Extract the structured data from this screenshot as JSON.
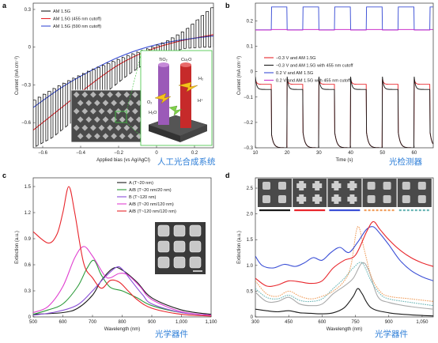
{
  "chart_data": [
    {
      "panel": "a",
      "type": "line",
      "xlabel": "Applied bias (vs Ag/AgCl)",
      "ylabel": "Current (mA cm⁻²)",
      "xlim": [
        -0.65,
        0.3
      ],
      "ylim": [
        -0.8,
        0.35
      ],
      "xticks": [
        -0.6,
        -0.4,
        -0.2,
        0,
        0.2
      ],
      "xtick_labels": [
        "−0.6",
        "−0.4",
        "−0.2",
        "0",
        "0.2"
      ],
      "yticks": [
        0.3,
        0,
        -0.3,
        -0.6
      ],
      "ytick_labels": [
        "0.3",
        "0",
        "−0.3",
        "−0.6"
      ],
      "legend": "top-left",
      "caption": "人工光合成系统",
      "series": [
        {
          "name": "AM 1.5G",
          "color": "#1a1a1a",
          "style": "chopped",
          "x": [
            -0.65,
            -0.55,
            -0.45,
            -0.35,
            -0.25,
            -0.15,
            -0.05,
            0.05,
            0.15,
            0.25,
            0.3
          ],
          "dark": [
            -0.8,
            -0.72,
            -0.6,
            -0.47,
            -0.34,
            -0.22,
            -0.12,
            -0.05,
            -0.01,
            0.0,
            0.0
          ],
          "light": [
            -0.42,
            -0.33,
            -0.25,
            -0.18,
            -0.12,
            -0.06,
            -0.01,
            0.05,
            0.14,
            0.27,
            0.33
          ]
        },
        {
          "name": "AM 1.5G (455 nm cutoff)",
          "color": "#e8262c",
          "x": [
            -0.65,
            -0.5,
            -0.35,
            -0.2,
            -0.05,
            0.1,
            0.3
          ],
          "y": [
            -0.66,
            -0.48,
            -0.3,
            -0.14,
            -0.03,
            0.04,
            0.1
          ]
        },
        {
          "name": "AM 1.5G (590 nm cutoff)",
          "color": "#3b4fd6",
          "x": [
            -0.65,
            -0.5,
            -0.35,
            -0.2,
            -0.05,
            0.1,
            0.3
          ],
          "y": [
            -0.48,
            -0.32,
            -0.19,
            -0.08,
            0.0,
            0.05,
            0.09
          ]
        }
      ],
      "inset_labels": [
        "TiO₂",
        "Cu₂O",
        "H₂",
        "H⁺",
        "O₂",
        "H₂O"
      ]
    },
    {
      "panel": "b",
      "type": "line",
      "xlabel": "Time (s)",
      "ylabel": "Current (mA cm⁻²)",
      "xlim": [
        10,
        66
      ],
      "ylim": [
        -0.3,
        0.27
      ],
      "xticks": [
        10,
        20,
        30,
        40,
        50,
        60
      ],
      "xtick_labels": [
        "10",
        "20",
        "30",
        "40",
        "50",
        "60"
      ],
      "yticks": [
        0.2,
        0.1,
        0,
        -0.1,
        -0.2,
        -0.3
      ],
      "ytick_labels": [
        "0.2",
        "0.1",
        "0",
        "−0.1",
        "−0.2",
        "−0.3"
      ],
      "legend": "top-right",
      "caption": "光检测器",
      "on_intervals": [
        [
          10,
          15
        ],
        [
          20,
          25
        ],
        [
          30,
          35
        ],
        [
          40,
          45
        ],
        [
          50,
          55
        ],
        [
          60,
          65
        ]
      ],
      "series": [
        {
          "name": "−0.3 V and AM 1.5G",
          "color": "#e8262c",
          "dark": -0.3,
          "light": -0.05
        },
        {
          "name": "−0.3 V and AM 1.5G with 455 nm cutoff",
          "color": "#1a1a1a",
          "dark": -0.3,
          "light": -0.07
        },
        {
          "name": "0.2 V and AM 1.5G",
          "color": "#3b4fd6",
          "dark": 0.255,
          "light": 0.165
        },
        {
          "name": "0.2 V and AM 1.5G with 455 nm cutoff",
          "color": "#cc33cc",
          "dark": 0.166,
          "light": 0.164
        }
      ]
    },
    {
      "panel": "c",
      "type": "line",
      "xlabel": "Wavelength (nm)",
      "ylabel": "Extinction (a.u.)",
      "xlim": [
        500,
        1100
      ],
      "ylim": [
        0,
        1.6
      ],
      "xticks": [
        500,
        600,
        700,
        800,
        900,
        1000,
        1100
      ],
      "xtick_labels": [
        "500",
        "600",
        "700",
        "800",
        "900",
        "1,000",
        "1,100"
      ],
      "yticks": [
        0,
        0.3,
        0.6,
        0.9,
        1.2,
        1.5
      ],
      "ytick_labels": [
        "0",
        "0.3",
        "0.6",
        "0.9",
        "1.2",
        "1.5"
      ],
      "legend": "top-right",
      "caption": "光学器件",
      "series": [
        {
          "name": "A (T~20 nm)",
          "color": "#1a1a1a",
          "x": [
            500,
            600,
            650,
            700,
            730,
            770,
            800,
            850,
            900,
            1000,
            1100
          ],
          "y": [
            0.03,
            0.05,
            0.1,
            0.25,
            0.42,
            0.56,
            0.54,
            0.4,
            0.22,
            0.08,
            0.03
          ]
        },
        {
          "name": "A/B (T~20 nm/20 nm)",
          "color": "#2c9a3a",
          "x": [
            500,
            550,
            600,
            650,
            680,
            705,
            730,
            760,
            800,
            850,
            900,
            1000,
            1100
          ],
          "y": [
            0.03,
            0.08,
            0.15,
            0.35,
            0.55,
            0.65,
            0.48,
            0.34,
            0.3,
            0.22,
            0.13,
            0.05,
            0.02
          ]
        },
        {
          "name": "B (T~120 nm)",
          "color": "#8a4fd8",
          "x": [
            500,
            580,
            650,
            700,
            740,
            780,
            800,
            830,
            870,
            900,
            1000,
            1100
          ],
          "y": [
            0.02,
            0.06,
            0.14,
            0.3,
            0.45,
            0.57,
            0.55,
            0.42,
            0.25,
            0.15,
            0.05,
            0.02
          ]
        },
        {
          "name": "A/B (T~20 nm/120 nm)",
          "color": "#e040d0",
          "x": [
            500,
            550,
            600,
            640,
            670,
            700,
            740,
            760,
            790,
            820,
            860,
            900,
            1000,
            1100
          ],
          "y": [
            0.05,
            0.12,
            0.35,
            0.68,
            0.81,
            0.7,
            0.48,
            0.45,
            0.5,
            0.48,
            0.35,
            0.2,
            0.06,
            0.02
          ]
        },
        {
          "name": "A/B (T~120 nm/120 nm)",
          "color": "#e8262c",
          "x": [
            500,
            550,
            580,
            600,
            620,
            640,
            670,
            700,
            730,
            760,
            790,
            820,
            850,
            900,
            1000,
            1100
          ],
          "y": [
            0.98,
            0.85,
            0.95,
            1.2,
            1.5,
            1.2,
            0.62,
            0.45,
            0.33,
            0.42,
            0.4,
            0.3,
            0.2,
            0.1,
            0.03,
            0.01
          ]
        }
      ]
    },
    {
      "panel": "d",
      "type": "line",
      "xlabel": "Wavelength (nm)",
      "ylabel": "Extinction (a.u.)",
      "xlim": [
        300,
        1100
      ],
      "ylim": [
        0,
        2.7
      ],
      "xticks": [
        300,
        450,
        600,
        750,
        900,
        1050
      ],
      "xtick_labels": [
        "300",
        "450",
        "600",
        "750",
        "900",
        "1,050"
      ],
      "yticks": [
        0,
        0.5,
        1.0,
        1.5,
        2.0,
        2.5
      ],
      "ytick_labels": [
        "0",
        "0.5",
        "1.0",
        "1.5",
        "2.0",
        "2.5"
      ],
      "caption": "光学器件",
      "series": [
        {
          "name": "black",
          "color": "#1a1a1a",
          "x": [
            300,
            350,
            400,
            450,
            500,
            550,
            600,
            650,
            700,
            740,
            760,
            780,
            820,
            900,
            1000,
            1100
          ],
          "y": [
            0.15,
            0.12,
            0.1,
            0.12,
            0.08,
            0.07,
            0.06,
            0.08,
            0.18,
            0.4,
            0.55,
            0.45,
            0.18,
            0.08,
            0.04,
            0.02
          ]
        },
        {
          "name": "red",
          "color": "#e8262c",
          "x": [
            300,
            350,
            400,
            450,
            500,
            550,
            600,
            650,
            700,
            750,
            800,
            830,
            860,
            900,
            950,
            1000,
            1050,
            1100
          ],
          "y": [
            0.75,
            0.6,
            0.62,
            0.7,
            0.68,
            0.65,
            0.7,
            0.95,
            1.1,
            1.2,
            1.65,
            1.85,
            1.7,
            1.5,
            1.3,
            1.15,
            1.05,
            0.98
          ]
        },
        {
          "name": "blue",
          "color": "#3b4fd6",
          "x": [
            300,
            330,
            380,
            430,
            480,
            520,
            560,
            600,
            640,
            680,
            720,
            760,
            800,
            830,
            860,
            900,
            950,
            1000,
            1050,
            1100
          ],
          "y": [
            1.18,
            1.0,
            0.95,
            1.02,
            0.98,
            1.05,
            1.15,
            1.1,
            1.25,
            1.35,
            1.25,
            1.45,
            1.7,
            1.75,
            1.62,
            1.4,
            1.1,
            0.9,
            0.78,
            0.7
          ]
        },
        {
          "name": "orange-dashed",
          "color": "#f0a060",
          "dashed": true,
          "x": [
            300,
            350,
            400,
            450,
            500,
            550,
            600,
            650,
            700,
            730,
            760,
            790,
            820,
            860,
            900,
            1000,
            1100
          ],
          "y": [
            0.7,
            0.45,
            0.4,
            0.5,
            0.4,
            0.35,
            0.4,
            0.5,
            0.7,
            1.0,
            1.75,
            1.3,
            0.8,
            0.5,
            0.4,
            0.35,
            0.3
          ]
        },
        {
          "name": "teal-dashed",
          "color": "#6ab5b5",
          "dashed": true,
          "x": [
            300,
            350,
            400,
            450,
            500,
            550,
            600,
            650,
            700,
            740,
            780,
            820,
            860,
            900,
            1000,
            1100
          ],
          "y": [
            0.55,
            0.38,
            0.35,
            0.42,
            0.32,
            0.3,
            0.35,
            0.55,
            0.75,
            0.95,
            1.05,
            0.7,
            0.45,
            0.35,
            0.28,
            0.22
          ]
        },
        {
          "name": "grey",
          "color": "#aaaaaa",
          "x": [
            300,
            350,
            400,
            450,
            500,
            550,
            600,
            650,
            700,
            740,
            780,
            810,
            850,
            900,
            1000,
            1100
          ],
          "y": [
            0.48,
            0.3,
            0.3,
            0.38,
            0.25,
            0.22,
            0.25,
            0.45,
            0.6,
            0.75,
            1.05,
            0.9,
            0.4,
            0.28,
            0.2,
            0.15
          ]
        }
      ],
      "strip_colors": [
        "#1a1a1a",
        "#e8262c",
        "#3b4fd6",
        "#f0a060",
        "#6ab5b5"
      ]
    }
  ],
  "panels": {
    "a": {
      "letter": "a"
    },
    "b": {
      "letter": "b"
    },
    "c": {
      "letter": "c"
    },
    "d": {
      "letter": "d"
    }
  }
}
